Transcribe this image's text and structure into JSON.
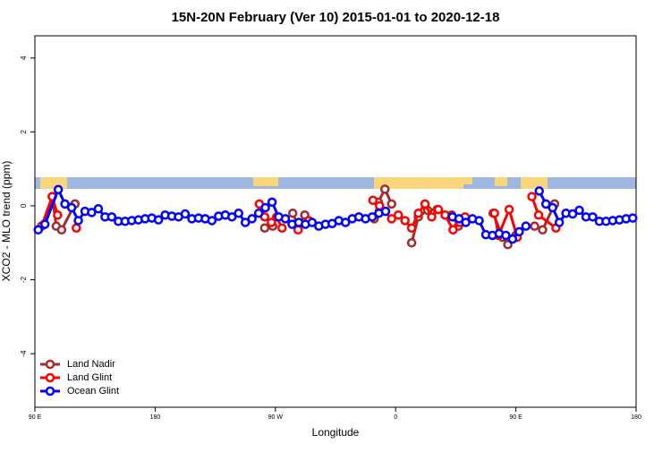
{
  "chart_data": {
    "type": "line",
    "title": "15N-20N February (Ver 10)   2015-01-01 to 2020-12-18",
    "xlabel": "Longitude",
    "ylabel": "XCO2 - MLO trend (ppm)",
    "xlim": [
      90,
      540
    ],
    "ylim": [
      -5.45,
      4.6
    ],
    "xticks": [
      {
        "value": 90,
        "label": "90 E"
      },
      {
        "value": 180,
        "label": "180"
      },
      {
        "value": 270,
        "label": "90 W"
      },
      {
        "value": 360,
        "label": "0"
      },
      {
        "value": 450,
        "label": "90 E"
      },
      {
        "value": 540,
        "label": "180"
      }
    ],
    "yticks": [
      -4,
      -2,
      0,
      2,
      4
    ],
    "legend": "bottomleft",
    "series": [
      {
        "name": "Land Nadir",
        "color": "#a52a2a",
        "x": [
          97,
          103,
          106,
          110,
          120,
          null,
          262,
          268,
          null,
          283,
          287,
          292,
          null,
          344,
          347,
          352,
          357,
          null,
          372,
          377,
          384,
          391,
          null,
          402,
          407,
          null,
          433,
          440,
          444,
          450,
          null,
          464,
          470,
          479
        ],
        "values": [
          -0.5,
          0.25,
          -0.55,
          -0.65,
          0.05,
          null,
          -0.6,
          -0.55,
          null,
          -0.2,
          -0.55,
          -0.25,
          null,
          -0.35,
          0.1,
          0.45,
          0.05,
          null,
          -1.0,
          -0.3,
          -0.12,
          -0.1,
          null,
          -0.25,
          -0.55,
          null,
          -0.2,
          -0.85,
          -1.05,
          -0.8,
          null,
          -0.55,
          -0.65,
          0.05
        ]
      },
      {
        "name": "Land Glint",
        "color": "#ff0000",
        "x": [
          95,
          103,
          107,
          null,
          121,
          null,
          258,
          262,
          267,
          271,
          275,
          null,
          287,
          295,
          null,
          343,
          348,
          357,
          362,
          367,
          372,
          377,
          382,
          387,
          392,
          397,
          403,
          408,
          412,
          null,
          434,
          437,
          445,
          451,
          null,
          462,
          467,
          480
        ],
        "values": [
          -0.55,
          0.25,
          -0.25,
          null,
          -0.6,
          null,
          0.05,
          -0.3,
          -0.45,
          -0.3,
          -0.6,
          null,
          -0.65,
          -0.4,
          null,
          0.15,
          0.0,
          -0.35,
          -0.25,
          -0.4,
          -0.6,
          -0.2,
          0.05,
          -0.3,
          -0.1,
          -0.25,
          -0.65,
          -0.45,
          -0.3,
          null,
          -0.2,
          -0.8,
          -0.1,
          -0.85,
          null,
          0.25,
          -0.25,
          -0.6
        ]
      },
      {
        "name": "Ocean Glint",
        "color": "#0000ff",
        "x": [
          92.5,
          97.5,
          107.5,
          112.5,
          117.5,
          122.5,
          127.5,
          132.5,
          137.5,
          142.5,
          147.5,
          152.5,
          157.5,
          162.5,
          167.5,
          172.5,
          177.5,
          182.5,
          187.5,
          192.5,
          197.5,
          202.5,
          207.5,
          212.5,
          217.5,
          222.5,
          227.5,
          232.5,
          237.5,
          242.5,
          247.5,
          252.5,
          257.5,
          262.5,
          267.5,
          272.5,
          277.5,
          282.5,
          287.5,
          292.5,
          297.5,
          302.5,
          307.5,
          312.5,
          317.5,
          322.5,
          327.5,
          332.5,
          337.5,
          342.5,
          347.5,
          352.5,
          null,
          402.5,
          407.5,
          412.5,
          417.5,
          422.5,
          427.5,
          432.5,
          437.5,
          442.5,
          447.5,
          452.5,
          457.5,
          null,
          467.5,
          472.5,
          477.5,
          482.5,
          487.5,
          492.5,
          497.5,
          502.5,
          507.5,
          512.5,
          517.5,
          522.5,
          527.5,
          532.5,
          537.5
        ],
        "values": [
          -0.65,
          -0.5,
          0.44,
          0.05,
          -0.05,
          -0.4,
          -0.15,
          -0.18,
          -0.08,
          -0.3,
          -0.3,
          -0.42,
          -0.42,
          -0.4,
          -0.38,
          -0.35,
          -0.33,
          -0.38,
          -0.25,
          -0.28,
          -0.3,
          -0.22,
          -0.35,
          -0.33,
          -0.35,
          -0.4,
          -0.28,
          -0.25,
          -0.3,
          -0.2,
          -0.45,
          -0.35,
          -0.2,
          -0.05,
          0.1,
          -0.3,
          -0.35,
          -0.5,
          -0.45,
          -0.5,
          -0.45,
          -0.55,
          -0.5,
          -0.48,
          -0.4,
          -0.45,
          -0.35,
          -0.3,
          -0.35,
          -0.3,
          -0.2,
          -0.15,
          null,
          -0.3,
          -0.35,
          -0.45,
          -0.35,
          -0.4,
          -0.78,
          -0.8,
          -0.75,
          -0.8,
          -0.9,
          -0.7,
          -0.55,
          null,
          0.4,
          0.05,
          -0.05,
          -0.45,
          -0.2,
          -0.22,
          -0.12,
          -0.3,
          -0.3,
          -0.42,
          -0.42,
          -0.4,
          -0.38,
          -0.35,
          -0.33
        ]
      }
    ]
  }
}
